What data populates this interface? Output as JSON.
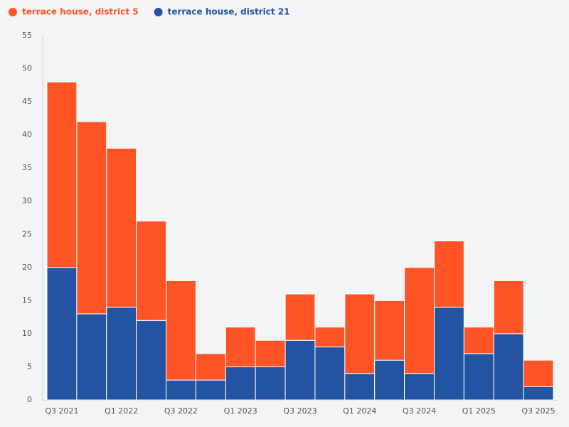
{
  "chart_data": {
    "type": "stacked-bar",
    "categories": [
      "Q3 2021",
      null,
      "Q1 2022",
      null,
      "Q3 2022",
      null,
      "Q1 2023",
      null,
      "Q3 2023",
      null,
      "Q1 2024",
      null,
      "Q3 2024",
      null,
      "Q1 2025",
      null,
      "Q3 2025"
    ],
    "series": [
      {
        "name": "terrace house, district 21",
        "color": "#2353a3",
        "values": [
          20,
          13,
          14,
          12,
          3,
          3,
          5,
          5,
          9,
          8,
          4,
          6,
          4,
          14,
          7,
          10,
          2
        ]
      },
      {
        "name": "terrace house, district 5",
        "color": "#ff5426",
        "values": [
          28,
          29,
          24,
          15,
          15,
          4,
          6,
          4,
          7,
          3,
          12,
          9,
          16,
          10,
          4,
          8,
          4
        ]
      }
    ],
    "legend_order": [
      1,
      0
    ],
    "ylim": [
      0,
      55
    ],
    "yticks": [
      0,
      5,
      10,
      15,
      20,
      25,
      30,
      35,
      40,
      45,
      50,
      55
    ],
    "grid": false
  }
}
